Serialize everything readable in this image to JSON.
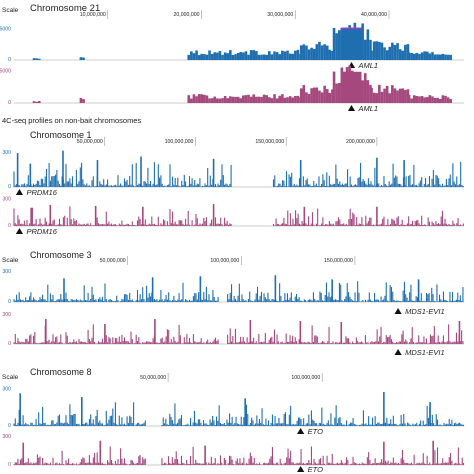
{
  "section_heading": "4C-seq profiles on non-bait chromosomes",
  "scale_label": "Scale",
  "colors": {
    "series1": "#1f6fb0",
    "series2": "#a4487e",
    "track_line": "#bdbdbd",
    "highlight": "#9c3cc8"
  },
  "chart_data": [
    {
      "type": "area",
      "panel": "Chromosome 21",
      "title": "Chromosome 21",
      "ticks": [
        "10,000,000",
        "20,000,000",
        "30,000,000",
        "40,000,000"
      ],
      "tick_pos": [
        10000000,
        20000000,
        30000000,
        40000000
      ],
      "xlim": [
        0,
        48000000
      ],
      "series": [
        {
          "color": "#1f6fb0",
          "ylabel_top": "5000",
          "ylabel_bottom": "0",
          "ylim": [
            0,
            6000
          ],
          "regions": [
            [
              2000000,
              2600000,
              300
            ],
            [
              7000000,
              7400000,
              600
            ],
            [
              18500000,
              30500000,
              1400
            ],
            [
              30500000,
              34000000,
              2500
            ],
            [
              34000000,
              38000000,
              5200
            ],
            [
              38000000,
              42000000,
              2600
            ],
            [
              42000000,
              46500000,
              1200
            ]
          ],
          "peaks": [
            [
              36000000,
              5000
            ]
          ]
        },
        {
          "color": "#a4487e",
          "ylabel_top": "5000",
          "ylabel_bottom": "0",
          "ylim": [
            0,
            6000
          ],
          "regions": [
            [
              2000000,
              2600000,
              300
            ],
            [
              7000000,
              7400000,
              700
            ],
            [
              18500000,
              30500000,
              1200
            ],
            [
              30500000,
              34000000,
              2400
            ],
            [
              34000000,
              38000000,
              5000
            ],
            [
              38000000,
              42000000,
              2600
            ],
            [
              42000000,
              46500000,
              1100
            ]
          ],
          "peaks": [
            [
              36000000,
              4800
            ]
          ]
        }
      ],
      "markers": [
        {
          "label": "AML1",
          "x": 36000000
        },
        {
          "label": "AML1",
          "x": 36000000
        }
      ]
    },
    {
      "type": "bar",
      "panel": "Chromosome 1",
      "title": "Chromosome 1",
      "ticks": [
        "50,000,000",
        "100,000,000",
        "150,000,000",
        "200,000,000"
      ],
      "tick_pos": [
        50000000,
        100000000,
        150000000,
        200000000
      ],
      "xlim": [
        0,
        248000000
      ],
      "series": [
        {
          "color": "#1f6fb0",
          "ylabel_top": "300",
          "ylabel_bottom": "0",
          "ylim": [
            0,
            350
          ],
          "regions": [
            [
              0,
              120000000,
              90
            ],
            [
              143000000,
              248000000,
              90
            ]
          ],
          "peaks": [
            [
              2000000,
              290
            ],
            [
              9000000,
              200
            ],
            [
              27000000,
              310
            ],
            [
              46000000,
              230
            ],
            [
              70000000,
              260
            ],
            [
              110000000,
              240
            ],
            [
              158000000,
              230
            ],
            [
              200000000,
              250
            ],
            [
              215000000,
              230
            ]
          ]
        },
        {
          "color": "#a4487e",
          "ylabel_top": "300",
          "ylabel_bottom": "0",
          "ylim": [
            0,
            350
          ],
          "regions": [
            [
              0,
              120000000,
              90
            ],
            [
              143000000,
              248000000,
              90
            ]
          ],
          "peaks": [
            [
              10000000,
              200
            ],
            [
              20000000,
              230
            ],
            [
              45000000,
              220
            ],
            [
              71000000,
              210
            ],
            [
              110000000,
              240
            ],
            [
              160000000,
              210
            ],
            [
              200000000,
              210
            ]
          ]
        }
      ],
      "markers": [
        {
          "label": "PRDM16",
          "x": 3000000
        },
        {
          "label": "PRDM16",
          "x": 3000000
        }
      ]
    },
    {
      "type": "bar",
      "panel": "Chromosome 3",
      "title": "Chromosome 3",
      "ticks": [
        "50,000,000",
        "100,000,000",
        "150,000,000"
      ],
      "tick_pos": [
        50000000,
        100000000,
        150000000
      ],
      "xlim": [
        0,
        198000000
      ],
      "series": [
        {
          "color": "#1f6fb0",
          "ylabel_top": "300",
          "ylabel_bottom": "0",
          "ylim": [
            0,
            350
          ],
          "regions": [
            [
              0,
              90000000,
              85
            ],
            [
              94000000,
              198000000,
              85
            ]
          ],
          "peaks": [
            [
              22000000,
              230
            ],
            [
              61000000,
              240
            ],
            [
              82000000,
              250
            ],
            [
              115000000,
              260
            ],
            [
              140000000,
              220
            ],
            [
              178000000,
              220
            ]
          ]
        },
        {
          "color": "#a4487e",
          "ylabel_top": "300",
          "ylabel_bottom": "0",
          "ylim": [
            0,
            350
          ],
          "regions": [
            [
              0,
              90000000,
              85
            ],
            [
              94000000,
              198000000,
              85
            ]
          ],
          "peaks": [
            [
              14000000,
              250
            ],
            [
              40000000,
              200
            ],
            [
              62000000,
              250
            ],
            [
              104000000,
              240
            ],
            [
              126000000,
              230
            ],
            [
              144000000,
              220
            ],
            [
              196000000,
              230
            ]
          ]
        }
      ],
      "markers": [
        {
          "label": "MDS1-EVI1",
          "x": 169000000
        },
        {
          "label": "MDS1-EVI1",
          "x": 169000000
        }
      ]
    },
    {
      "type": "bar",
      "panel": "Chromosome 8",
      "title": "Chromosome 8",
      "ticks": [
        "50,000,000",
        "100,000,000"
      ],
      "tick_pos": [
        50000000,
        100000000
      ],
      "xlim": [
        0,
        146000000
      ],
      "series": [
        {
          "color": "#1f6fb0",
          "ylabel_top": "300",
          "ylabel_bottom": "0",
          "ylim": [
            0,
            350
          ],
          "regions": [
            [
              0,
              43000000,
              80
            ],
            [
              48000000,
              146000000,
              80
            ]
          ],
          "peaks": [
            [
              2000000,
              260
            ],
            [
              22000000,
              230
            ],
            [
              75000000,
              220
            ],
            [
              120000000,
              270
            ],
            [
              135000000,
              190
            ]
          ]
        },
        {
          "color": "#a4487e",
          "ylabel_top": "300",
          "ylabel_bottom": "0",
          "ylim": [
            0,
            350
          ],
          "regions": [
            [
              0,
              43000000,
              80
            ],
            [
              48000000,
              146000000,
              80
            ]
          ],
          "peaks": [
            [
              3000000,
              230
            ],
            [
              28000000,
              250
            ],
            [
              62000000,
              200
            ],
            [
              120000000,
              240
            ],
            [
              136000000,
              250
            ]
          ]
        }
      ],
      "markers": [
        {
          "label": "ETO",
          "x": 93000000
        },
        {
          "label": "ETO",
          "x": 93000000
        }
      ]
    }
  ]
}
